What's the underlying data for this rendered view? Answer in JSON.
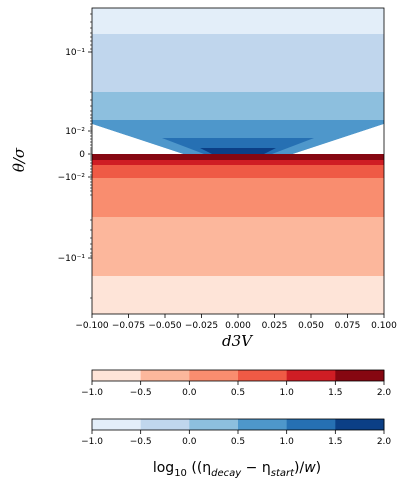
{
  "chart_data": {
    "type": "contourf",
    "xlabel": "d3V",
    "ylabel": "θ/σ",
    "xlim": [
      -0.1,
      0.1
    ],
    "y_scale": "symlog",
    "x_ticks": [
      "−0.100",
      "−0.075",
      "−0.050",
      "−0.025",
      "0.000",
      "0.025",
      "0.050",
      "0.075",
      "0.100"
    ],
    "y_ticks": [
      "10⁻¹",
      "10⁻²",
      "0",
      "−10⁻²",
      "−10⁻¹"
    ],
    "blue_bands": [
      {
        "value_range": [
          -1.0,
          -0.5
        ],
        "color": "#e3eef9"
      },
      {
        "value_range": [
          -0.5,
          0.0
        ],
        "color": "#c0d6ed"
      },
      {
        "value_range": [
          0.0,
          0.5
        ],
        "color": "#8dbfde"
      },
      {
        "value_range": [
          0.5,
          1.0
        ],
        "color": "#4e97cb"
      },
      {
        "value_range": [
          1.0,
          1.5
        ],
        "color": "#2670b3"
      },
      {
        "value_range": [
          1.5,
          2.0
        ],
        "color": "#0b3f86"
      }
    ],
    "red_bands": [
      {
        "value_range": [
          -1.0,
          -0.5
        ],
        "color": "#fee4d8"
      },
      {
        "value_range": [
          -0.5,
          0.0
        ],
        "color": "#fcb79c"
      },
      {
        "value_range": [
          0.0,
          0.5
        ],
        "color": "#f98d6f"
      },
      {
        "value_range": [
          0.5,
          1.0
        ],
        "color": "#ef5a45"
      },
      {
        "value_range": [
          1.0,
          1.5
        ],
        "color": "#cf1d24"
      },
      {
        "value_range": [
          1.5,
          2.0
        ],
        "color": "#860711"
      }
    ],
    "colorbar_ticks": [
      "−1.0",
      "−0.5",
      "0.0",
      "0.5",
      "1.0",
      "1.5",
      "2.0"
    ],
    "colorbar_label": "log₁₀((η_decay − η_start)/w)"
  }
}
